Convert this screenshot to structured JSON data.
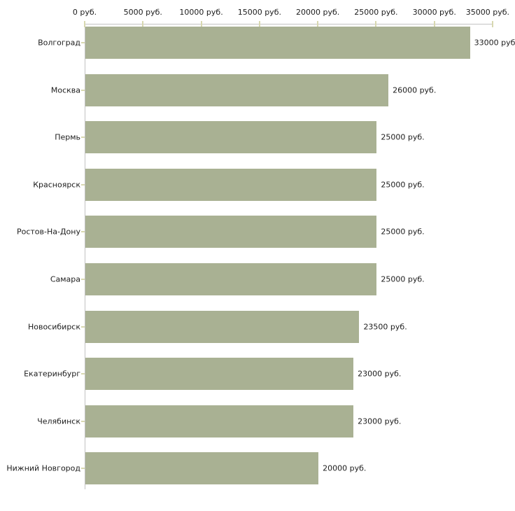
{
  "chart_data": {
    "type": "bar",
    "orientation": "horizontal",
    "title": "",
    "xlabel": "",
    "ylabel": "",
    "categories": [
      "Волгоград",
      "Москва",
      "Пермь",
      "Красноярск",
      "Ростов-На-Дону",
      "Самара",
      "Новосибирск",
      "Екатеринбург",
      "Челябинск",
      "Нижний Новгород"
    ],
    "values": [
      33000,
      26000,
      25000,
      25000,
      25000,
      25000,
      23500,
      23000,
      23000,
      20000
    ],
    "value_labels": [
      "33000 руб",
      "26000 руб.",
      "25000 руб.",
      "25000 руб.",
      "25000 руб.",
      "25000 руб.",
      "23500 руб.",
      "23000 руб.",
      "23000 руб.",
      "20000 руб."
    ],
    "x_ticks": [
      0,
      5000,
      10000,
      15000,
      20000,
      25000,
      30000,
      35000
    ],
    "x_tick_labels": [
      "0 руб.",
      "5000 руб.",
      "10000 руб.",
      "15000 руб.",
      "20000 руб.",
      "25000 руб.",
      "30000 руб.",
      "35000 руб."
    ],
    "xlim": [
      0,
      35000
    ],
    "x_axis_position": "top",
    "grid": "off",
    "legend": "none",
    "colors": {
      "bar": "#a9b193",
      "axis_line": "#c2c2c2",
      "tick_mark": "#d8d8b0",
      "text": "#1c1c1c",
      "background": "#ffffff"
    }
  }
}
